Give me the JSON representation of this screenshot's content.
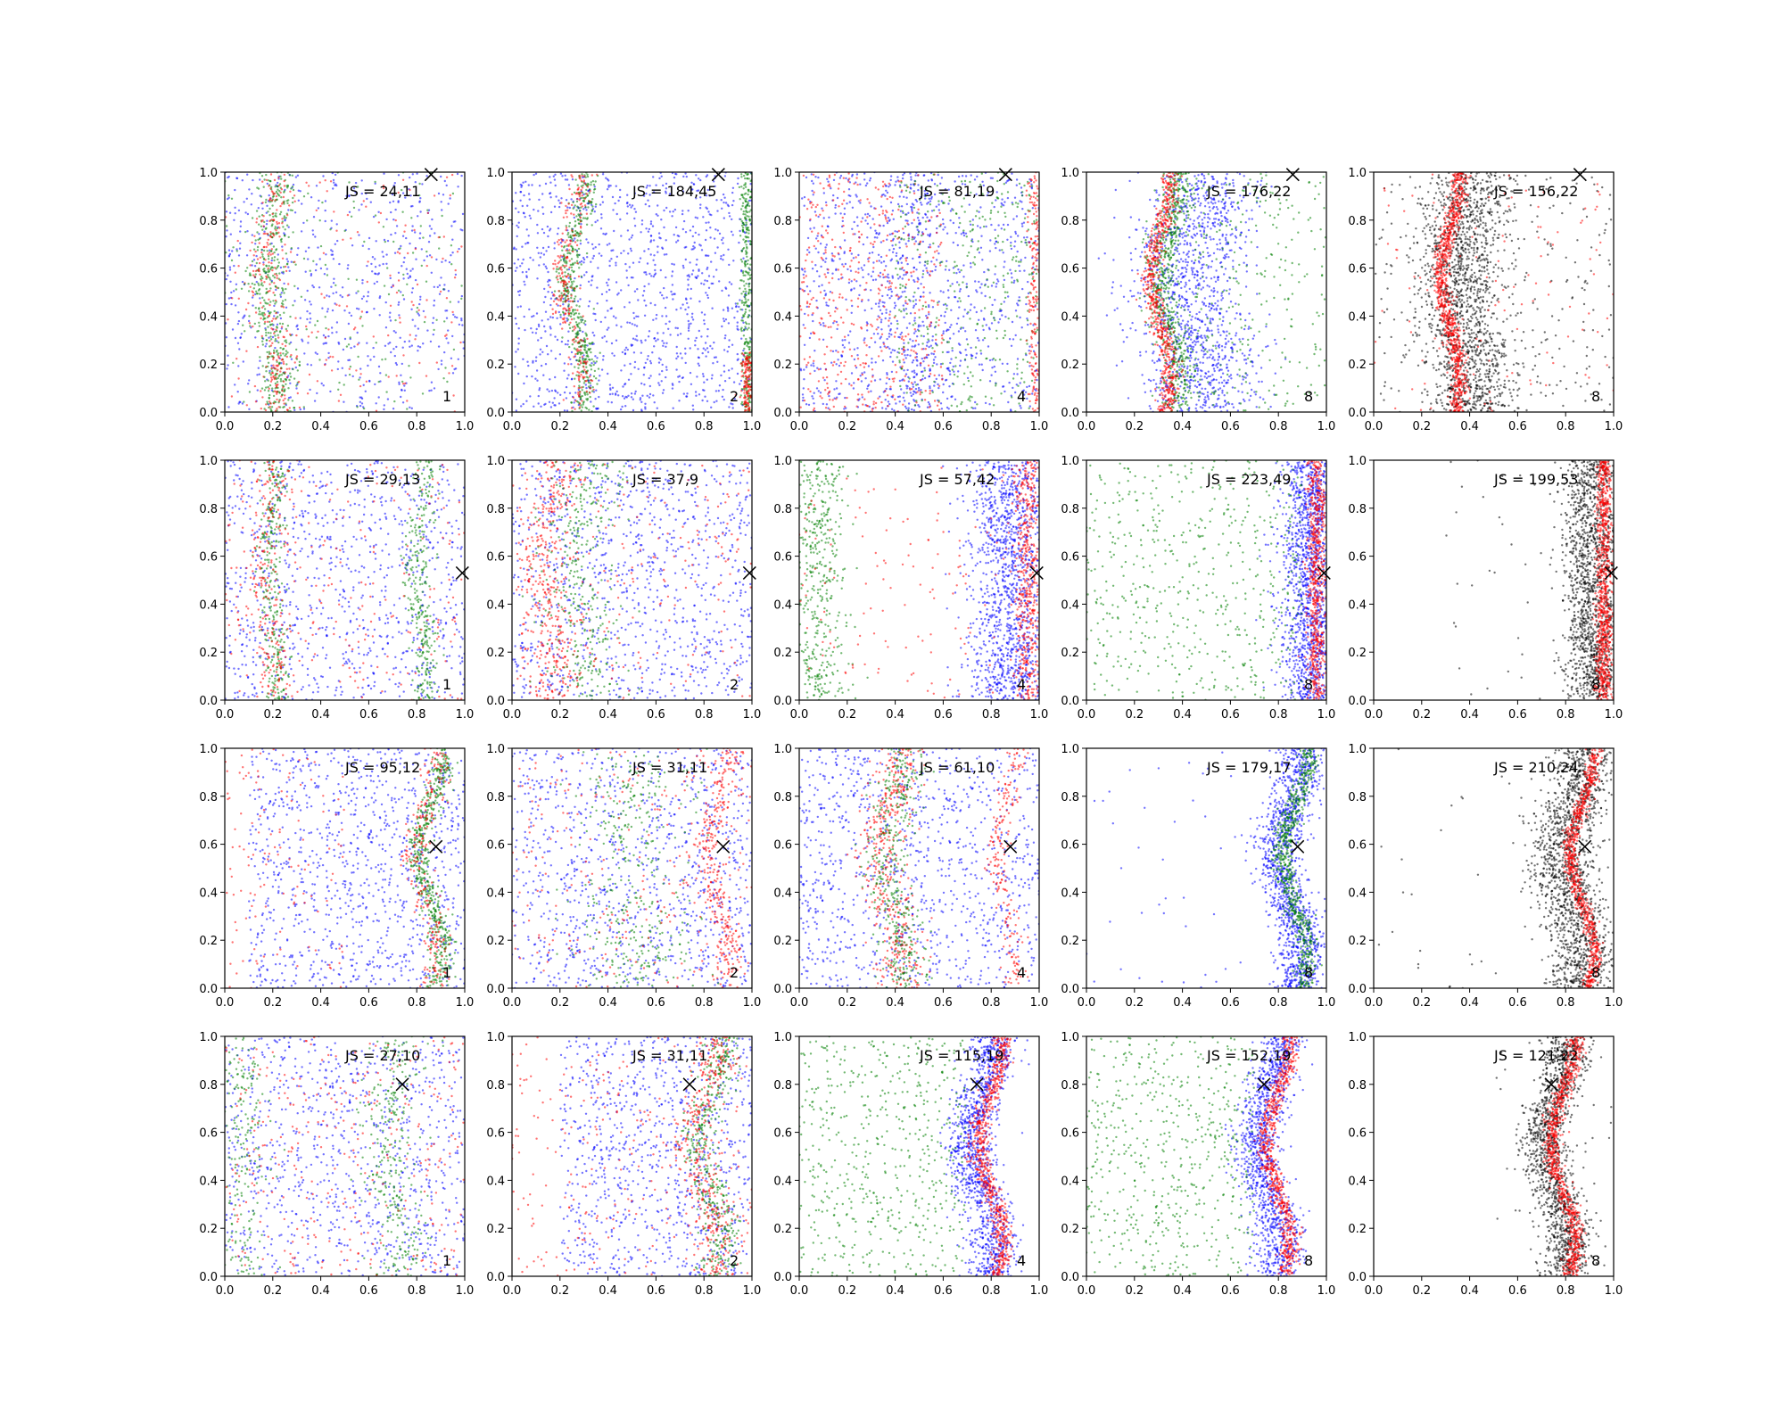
{
  "figure": {
    "rows": 4,
    "cols": 5
  },
  "axes_defaults": {
    "xlim": [
      0,
      1
    ],
    "ylim": [
      0,
      1
    ],
    "xticks": [
      "0.0",
      "0.2",
      "0.4",
      "0.6",
      "0.8",
      "1.0"
    ],
    "yticks": [
      "0.0",
      "0.2",
      "0.4",
      "0.6",
      "0.8",
      "1.0"
    ]
  },
  "colors": {
    "red": "#ff0000",
    "green": "#008000",
    "blue": "#0000ff",
    "black": "#000000"
  },
  "chart_data": [
    {
      "type": "scatter",
      "row": 0,
      "col": 0,
      "label": "JS = 24,11",
      "corner": "1",
      "marker": [
        0.86,
        0.99
      ],
      "clusters": [
        {
          "color": "blue",
          "n": 650,
          "kind": "uniform",
          "xr": [
            0,
            1
          ]
        },
        {
          "color": "green",
          "n": 420,
          "kind": "band",
          "base": 0.2,
          "amp": 0.03,
          "sd": 0.04
        },
        {
          "color": "red",
          "n": 220,
          "kind": "band",
          "base": 0.19,
          "amp": 0.03,
          "sd": 0.04
        },
        {
          "color": "green",
          "n": 160,
          "kind": "uniform",
          "xr": [
            0,
            1
          ]
        },
        {
          "color": "red",
          "n": 160,
          "kind": "uniform",
          "xr": [
            0,
            1
          ]
        }
      ]
    },
    {
      "type": "scatter",
      "row": 0,
      "col": 1,
      "label": "JS = 184,45",
      "corner": "2",
      "marker": [
        0.86,
        0.99
      ],
      "clusters": [
        {
          "color": "blue",
          "n": 1100,
          "kind": "uniform",
          "xr": [
            0,
            1
          ]
        },
        {
          "color": "green",
          "n": 450,
          "kind": "band",
          "base": 0.27,
          "amp": 0.04,
          "sd": 0.025
        },
        {
          "color": "red",
          "n": 250,
          "kind": "band",
          "base": 0.25,
          "amp": 0.04,
          "sd": 0.025
        },
        {
          "color": "green",
          "n": 350,
          "kind": "band",
          "base": 0.98,
          "amp": 0.0,
          "sd": 0.015
        },
        {
          "color": "red",
          "n": 150,
          "kind": "bandseg",
          "base": 0.98,
          "amp": 0.0,
          "sd": 0.015,
          "yr": [
            0,
            0.25
          ]
        }
      ]
    },
    {
      "type": "scatter",
      "row": 0,
      "col": 2,
      "label": "JS = 81,19",
      "corner": "4",
      "marker": [
        0.86,
        0.99
      ],
      "clusters": [
        {
          "color": "blue",
          "n": 850,
          "kind": "uniform",
          "xr": [
            0,
            1
          ]
        },
        {
          "color": "blue",
          "n": 300,
          "kind": "band",
          "base": 0.45,
          "amp": 0.03,
          "sd": 0.08
        },
        {
          "color": "red",
          "n": 450,
          "kind": "uniform",
          "xr": [
            0,
            0.6
          ]
        },
        {
          "color": "green",
          "n": 350,
          "kind": "uniform",
          "xr": [
            0.4,
            1
          ]
        },
        {
          "color": "red",
          "n": 200,
          "kind": "band",
          "base": 0.98,
          "amp": 0.0,
          "sd": 0.015
        }
      ]
    },
    {
      "type": "scatter",
      "row": 0,
      "col": 3,
      "label": "JS = 176,22",
      "corner": "8",
      "marker": [
        0.86,
        0.99
      ],
      "clusters": [
        {
          "color": "blue",
          "n": 1200,
          "kind": "band",
          "base": 0.45,
          "amp": 0.03,
          "sd": 0.12
        },
        {
          "color": "green",
          "n": 700,
          "kind": "band",
          "base": 0.35,
          "amp": 0.04,
          "sd": 0.035
        },
        {
          "color": "red",
          "n": 650,
          "kind": "band",
          "base": 0.31,
          "amp": 0.04,
          "sd": 0.02
        },
        {
          "color": "green",
          "n": 250,
          "kind": "uniform",
          "xr": [
            0.45,
            1
          ]
        }
      ]
    },
    {
      "type": "scatter",
      "row": 0,
      "col": 4,
      "label": "JS = 156,22",
      "corner": "8",
      "marker": [
        0.86,
        0.99
      ],
      "clusters": [
        {
          "color": "black",
          "n": 1500,
          "kind": "band",
          "base": 0.38,
          "amp": 0.03,
          "sd": 0.09
        },
        {
          "color": "black",
          "n": 300,
          "kind": "uniform",
          "xr": [
            0,
            1
          ]
        },
        {
          "color": "red",
          "n": 900,
          "kind": "band",
          "base": 0.32,
          "amp": 0.04,
          "sd": 0.018
        },
        {
          "color": "red",
          "n": 120,
          "kind": "uniform",
          "xr": [
            0,
            1
          ]
        }
      ]
    },
    {
      "type": "scatter",
      "row": 1,
      "col": 0,
      "label": "JS = 29,13",
      "corner": "1",
      "marker": [
        0.99,
        0.53
      ],
      "clusters": [
        {
          "color": "blue",
          "n": 900,
          "kind": "uniform",
          "xr": [
            0,
            1
          ]
        },
        {
          "color": "green",
          "n": 300,
          "kind": "band",
          "base": 0.2,
          "amp": 0.02,
          "sd": 0.03
        },
        {
          "color": "green",
          "n": 300,
          "kind": "band",
          "base": 0.82,
          "amp": 0.02,
          "sd": 0.03
        },
        {
          "color": "red",
          "n": 220,
          "kind": "band",
          "base": 0.19,
          "amp": 0.02,
          "sd": 0.04
        },
        {
          "color": "red",
          "n": 220,
          "kind": "uniform",
          "xr": [
            0,
            1
          ]
        }
      ]
    },
    {
      "type": "scatter",
      "row": 1,
      "col": 1,
      "label": "JS = 37,9",
      "corner": "2",
      "marker": [
        0.99,
        0.53
      ],
      "clusters": [
        {
          "color": "blue",
          "n": 1000,
          "kind": "uniform",
          "xr": [
            0,
            1
          ]
        },
        {
          "color": "red",
          "n": 400,
          "kind": "band",
          "base": 0.15,
          "amp": 0.03,
          "sd": 0.06
        },
        {
          "color": "green",
          "n": 350,
          "kind": "band",
          "base": 0.3,
          "amp": 0.03,
          "sd": 0.08
        },
        {
          "color": "red",
          "n": 200,
          "kind": "uniform",
          "xr": [
            0,
            1
          ]
        }
      ]
    },
    {
      "type": "scatter",
      "row": 1,
      "col": 2,
      "label": "JS = 57,42",
      "corner": "4",
      "marker": [
        0.99,
        0.53
      ],
      "clusters": [
        {
          "color": "blue",
          "n": 1300,
          "kind": "band",
          "base": 0.88,
          "amp": 0.0,
          "sd": 0.09
        },
        {
          "color": "green",
          "n": 450,
          "kind": "band",
          "base": 0.08,
          "amp": 0.0,
          "sd": 0.06
        },
        {
          "color": "red",
          "n": 450,
          "kind": "band",
          "base": 0.95,
          "amp": 0.0,
          "sd": 0.025
        },
        {
          "color": "red",
          "n": 150,
          "kind": "uniform",
          "xr": [
            0,
            1
          ]
        }
      ]
    },
    {
      "type": "scatter",
      "row": 1,
      "col": 3,
      "label": "JS = 223,49",
      "corner": "8",
      "marker": [
        0.99,
        0.53
      ],
      "clusters": [
        {
          "color": "blue",
          "n": 1400,
          "kind": "band",
          "base": 0.93,
          "amp": 0.0,
          "sd": 0.06
        },
        {
          "color": "green",
          "n": 550,
          "kind": "uniform",
          "xr": [
            0,
            0.9
          ]
        },
        {
          "color": "red",
          "n": 650,
          "kind": "band",
          "base": 0.96,
          "amp": 0.0,
          "sd": 0.02
        }
      ]
    },
    {
      "type": "scatter",
      "row": 1,
      "col": 4,
      "label": "JS = 199,53",
      "corner": "8",
      "marker": [
        0.99,
        0.53
      ],
      "clusters": [
        {
          "color": "black",
          "n": 1500,
          "kind": "band",
          "base": 0.91,
          "amp": 0.0,
          "sd": 0.06
        },
        {
          "color": "black",
          "n": 40,
          "kind": "uniform",
          "xr": [
            0.3,
            1
          ]
        },
        {
          "color": "red",
          "n": 850,
          "kind": "band",
          "base": 0.96,
          "amp": 0.0,
          "sd": 0.018
        }
      ]
    },
    {
      "type": "scatter",
      "row": 2,
      "col": 0,
      "label": "JS = 95,12",
      "corner": "1",
      "marker": [
        0.88,
        0.59
      ],
      "clusters": [
        {
          "color": "blue",
          "n": 1000,
          "kind": "uniform",
          "xr": [
            0.1,
            1
          ]
        },
        {
          "color": "green",
          "n": 550,
          "kind": "band",
          "base": 0.86,
          "amp": 0.05,
          "sd": 0.025
        },
        {
          "color": "red",
          "n": 250,
          "kind": "band",
          "base": 0.84,
          "amp": 0.05,
          "sd": 0.03
        },
        {
          "color": "red",
          "n": 120,
          "kind": "uniform",
          "xr": [
            0,
            0.5
          ]
        }
      ]
    },
    {
      "type": "scatter",
      "row": 2,
      "col": 1,
      "label": "JS = 31,11",
      "corner": "2",
      "marker": [
        0.88,
        0.59
      ],
      "clusters": [
        {
          "color": "blue",
          "n": 1000,
          "kind": "uniform",
          "xr": [
            0,
            1
          ]
        },
        {
          "color": "green",
          "n": 350,
          "kind": "band",
          "base": 0.5,
          "amp": 0.03,
          "sd": 0.12
        },
        {
          "color": "red",
          "n": 300,
          "kind": "band",
          "base": 0.86,
          "amp": 0.04,
          "sd": 0.03
        },
        {
          "color": "red",
          "n": 250,
          "kind": "uniform",
          "xr": [
            0,
            1
          ]
        }
      ]
    },
    {
      "type": "scatter",
      "row": 2,
      "col": 2,
      "label": "JS = 61,10",
      "corner": "4",
      "marker": [
        0.88,
        0.59
      ],
      "clusters": [
        {
          "color": "blue",
          "n": 1000,
          "kind": "uniform",
          "xr": [
            0,
            1
          ]
        },
        {
          "color": "red",
          "n": 450,
          "kind": "band",
          "base": 0.38,
          "amp": 0.04,
          "sd": 0.05
        },
        {
          "color": "green",
          "n": 400,
          "kind": "band",
          "base": 0.4,
          "amp": 0.04,
          "sd": 0.05
        },
        {
          "color": "red",
          "n": 200,
          "kind": "band",
          "base": 0.86,
          "amp": 0.04,
          "sd": 0.025
        }
      ]
    },
    {
      "type": "scatter",
      "row": 2,
      "col": 3,
      "label": "JS = 179,17",
      "corner": "8",
      "marker": [
        0.88,
        0.59
      ],
      "clusters": [
        {
          "color": "blue",
          "n": 1300,
          "kind": "band",
          "base": 0.85,
          "amp": 0.05,
          "sd": 0.05
        },
        {
          "color": "blue",
          "n": 40,
          "kind": "uniform",
          "xr": [
            0,
            0.7
          ]
        },
        {
          "color": "green",
          "n": 700,
          "kind": "band",
          "base": 0.87,
          "amp": 0.05,
          "sd": 0.022
        }
      ]
    },
    {
      "type": "scatter",
      "row": 2,
      "col": 4,
      "label": "JS = 210,24",
      "corner": "8",
      "marker": [
        0.88,
        0.59
      ],
      "clusters": [
        {
          "color": "black",
          "n": 1600,
          "kind": "band",
          "base": 0.83,
          "amp": 0.05,
          "sd": 0.07
        },
        {
          "color": "black",
          "n": 30,
          "kind": "uniform",
          "xr": [
            0,
            0.7
          ]
        },
        {
          "color": "red",
          "n": 800,
          "kind": "band",
          "base": 0.87,
          "amp": 0.05,
          "sd": 0.015
        }
      ]
    },
    {
      "type": "scatter",
      "row": 3,
      "col": 0,
      "label": "JS = 27,10",
      "corner": "1",
      "marker": [
        0.74,
        0.8
      ],
      "clusters": [
        {
          "color": "blue",
          "n": 900,
          "kind": "uniform",
          "xr": [
            0,
            1
          ]
        },
        {
          "color": "green",
          "n": 300,
          "kind": "band",
          "base": 0.7,
          "amp": 0.04,
          "sd": 0.06
        },
        {
          "color": "green",
          "n": 200,
          "kind": "band",
          "base": 0.08,
          "amp": 0.0,
          "sd": 0.05
        },
        {
          "color": "red",
          "n": 300,
          "kind": "uniform",
          "xr": [
            0,
            1
          ]
        }
      ]
    },
    {
      "type": "scatter",
      "row": 3,
      "col": 1,
      "label": "JS = 31,11",
      "corner": "2",
      "marker": [
        0.74,
        0.8
      ],
      "clusters": [
        {
          "color": "blue",
          "n": 900,
          "kind": "uniform",
          "xr": [
            0.2,
            1
          ]
        },
        {
          "color": "green",
          "n": 450,
          "kind": "band",
          "base": 0.83,
          "amp": 0.05,
          "sd": 0.04
        },
        {
          "color": "red",
          "n": 350,
          "kind": "band",
          "base": 0.8,
          "amp": 0.05,
          "sd": 0.04
        },
        {
          "color": "red",
          "n": 250,
          "kind": "uniform",
          "xr": [
            0,
            1
          ]
        }
      ]
    },
    {
      "type": "scatter",
      "row": 3,
      "col": 2,
      "label": "JS = 115,19",
      "corner": "4",
      "marker": [
        0.74,
        0.8
      ],
      "clusters": [
        {
          "color": "blue",
          "n": 1200,
          "kind": "band",
          "base": 0.76,
          "amp": 0.05,
          "sd": 0.05
        },
        {
          "color": "green",
          "n": 550,
          "kind": "uniform",
          "xr": [
            0,
            0.7
          ]
        },
        {
          "color": "red",
          "n": 700,
          "kind": "band",
          "base": 0.8,
          "amp": 0.05,
          "sd": 0.02
        }
      ]
    },
    {
      "type": "scatter",
      "row": 3,
      "col": 3,
      "label": "JS = 152,19",
      "corner": "8",
      "marker": [
        0.74,
        0.8
      ],
      "clusters": [
        {
          "color": "blue",
          "n": 1200,
          "kind": "band",
          "base": 0.76,
          "amp": 0.05,
          "sd": 0.05
        },
        {
          "color": "green",
          "n": 550,
          "kind": "uniform",
          "xr": [
            0,
            0.7
          ]
        },
        {
          "color": "red",
          "n": 700,
          "kind": "band",
          "base": 0.8,
          "amp": 0.05,
          "sd": 0.02
        }
      ]
    },
    {
      "type": "scatter",
      "row": 3,
      "col": 4,
      "label": "JS = 121,22",
      "corner": "8",
      "marker": [
        0.74,
        0.8
      ],
      "clusters": [
        {
          "color": "black",
          "n": 1400,
          "kind": "band",
          "base": 0.76,
          "amp": 0.05,
          "sd": 0.05
        },
        {
          "color": "black",
          "n": 40,
          "kind": "uniform",
          "xr": [
            0.5,
            1
          ]
        },
        {
          "color": "red",
          "n": 850,
          "kind": "band",
          "base": 0.79,
          "amp": 0.05,
          "sd": 0.018
        }
      ]
    }
  ]
}
